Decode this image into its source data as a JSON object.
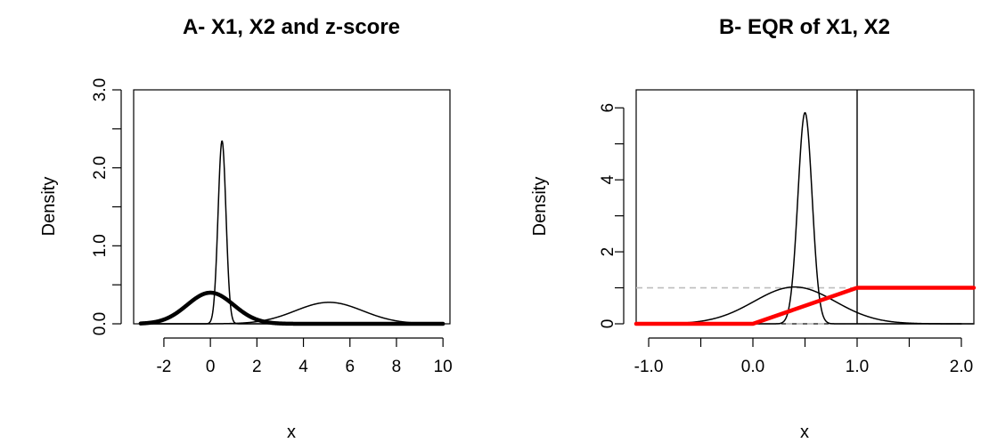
{
  "chart_data": [
    {
      "type": "line",
      "title": "A- X1, X2 and z-score",
      "xlabel": "x",
      "ylabel": "Density",
      "xlim": [
        -3.3,
        10.3
      ],
      "ylim": [
        0,
        3.0
      ],
      "xticks": [
        -2,
        0,
        2,
        4,
        6,
        8,
        10
      ],
      "xtick_labels": [
        "-2",
        "0",
        "2",
        "4",
        "6",
        "8",
        "10"
      ],
      "yticks": [
        0,
        0.5,
        1,
        1.5,
        2,
        2.5,
        3
      ],
      "ytick_labels": [
        "0.0",
        "",
        "1.0",
        "",
        "2.0",
        "",
        "3.0"
      ],
      "series": [
        {
          "kind": "normal-density",
          "mean": 0.5,
          "sd": 0.17,
          "x_from": -3,
          "x_to": 10,
          "color": "#000000",
          "weight": "thin"
        },
        {
          "kind": "normal-density",
          "mean": 5.1,
          "sd": 1.45,
          "x_from": -3,
          "x_to": 10,
          "color": "#000000",
          "weight": "thin"
        },
        {
          "kind": "normal-density",
          "mean": 0,
          "sd": 1,
          "x_from": -3,
          "x_to": 10,
          "color": "#000000",
          "weight": "thick"
        }
      ]
    },
    {
      "type": "line",
      "title": "B- EQR of X1, X2",
      "xlabel": "x",
      "ylabel": "Density",
      "xlim": [
        -1.12,
        2.12
      ],
      "ylim": [
        0,
        6.5
      ],
      "xticks": [
        -1.0,
        -0.5,
        0.0,
        0.5,
        1.0,
        1.5,
        2.0
      ],
      "xtick_labels": [
        "-1.0",
        "",
        "0.0",
        "",
        "1.0",
        "",
        "2.0"
      ],
      "yticks": [
        0,
        1,
        2,
        3,
        4,
        5,
        6
      ],
      "ytick_labels": [
        "0",
        "",
        "2",
        "",
        "4",
        "",
        "6"
      ],
      "hlines": [
        {
          "y": 0,
          "color": "#bebebe",
          "style": "dashed"
        },
        {
          "y": 1,
          "color": "#bebebe",
          "style": "dashed"
        }
      ],
      "vlines": [
        {
          "x": 1,
          "color": "#000000",
          "style": "solid"
        }
      ],
      "series": [
        {
          "kind": "normal-density",
          "mean": 0.5,
          "sd": 0.068,
          "x_from": -1.12,
          "x_to": 2.12,
          "color": "#000000",
          "weight": "thin"
        },
        {
          "kind": "normal-density",
          "mean": 0.4,
          "sd": 0.39,
          "x_from": -1.12,
          "x_to": 2.0,
          "color": "#000000",
          "weight": "thin"
        },
        {
          "kind": "polyline",
          "x": [
            -1.12,
            0,
            1,
            2.12
          ],
          "y": [
            0,
            0,
            1,
            1
          ],
          "color": "#ff0000",
          "weight": "thick"
        }
      ]
    }
  ]
}
